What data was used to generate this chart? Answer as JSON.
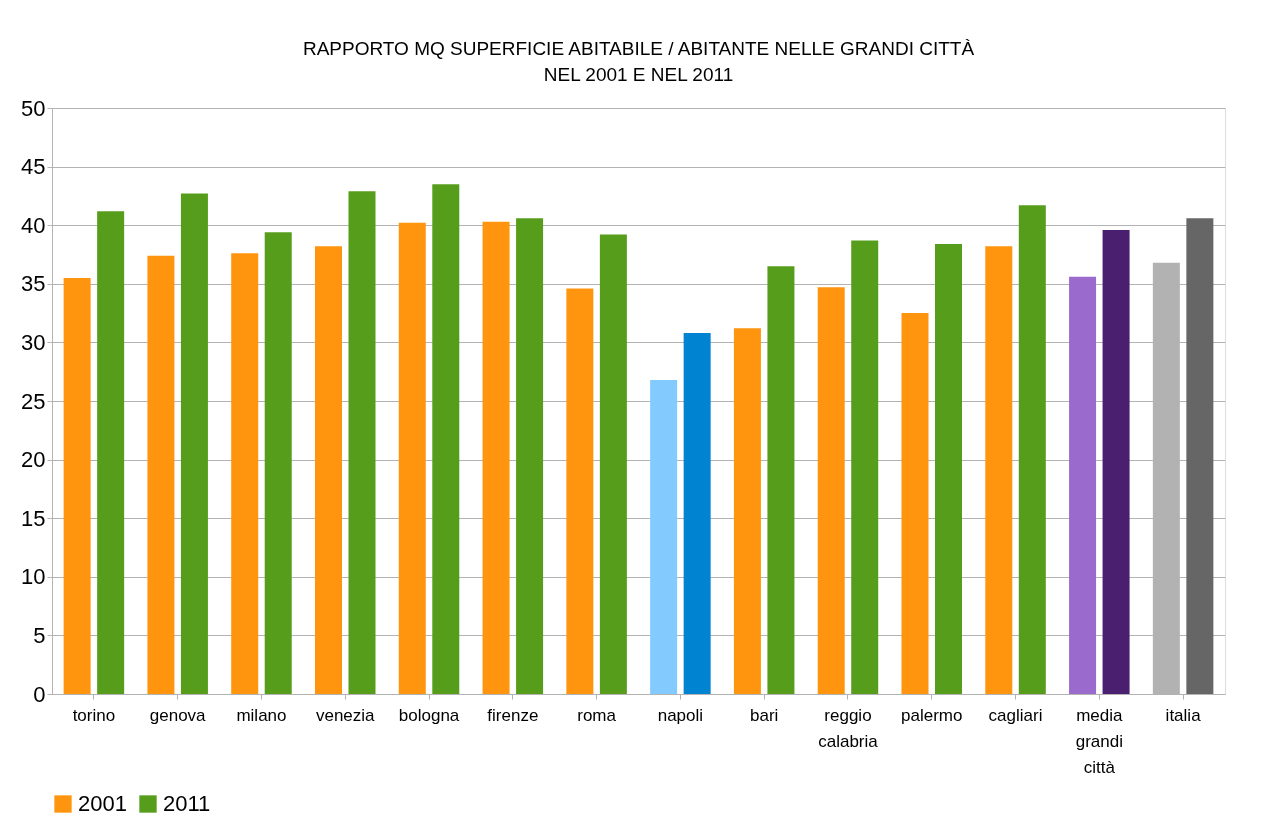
{
  "chart_data": {
    "type": "bar",
    "title": "RAPPORTO MQ SUPERFICIE ABITABILE / ABITANTE NELLE GRANDI CITTÀ\nNEL 2001 E NEL 2011",
    "categories": [
      "torino",
      "genova",
      "milano",
      "venezia",
      "bologna",
      "firenze",
      "roma",
      "napoli",
      "bari",
      "reggio calabria",
      "palermo",
      "cagliari",
      "media grandi città",
      "italia"
    ],
    "series": [
      {
        "name": "2001",
        "color": "#ff950e",
        "colors": [
          "#ff950e",
          "#ff950e",
          "#ff950e",
          "#ff950e",
          "#ff950e",
          "#ff950e",
          "#ff950e",
          "#83caff",
          "#ff950e",
          "#ff950e",
          "#ff950e",
          "#ff950e",
          "#9a6acd",
          "#b2b2b2"
        ],
        "values": [
          35.5,
          37.4,
          37.6,
          38.2,
          40.2,
          40.3,
          34.6,
          26.8,
          31.2,
          34.7,
          32.5,
          38.2,
          35.6,
          36.8
        ]
      },
      {
        "name": "2011",
        "color": "#579d1c",
        "colors": [
          "#579d1c",
          "#579d1c",
          "#579d1c",
          "#579d1c",
          "#579d1c",
          "#579d1c",
          "#579d1c",
          "#0084d1",
          "#579d1c",
          "#579d1c",
          "#579d1c",
          "#579d1c",
          "#4b1f6f",
          "#666666"
        ],
        "values": [
          41.2,
          42.7,
          39.4,
          42.9,
          43.5,
          40.6,
          39.2,
          30.8,
          36.5,
          38.7,
          38.4,
          41.7,
          39.6,
          40.6
        ]
      }
    ],
    "ylim": [
      0,
      50
    ],
    "yticks": [
      0,
      5,
      10,
      15,
      20,
      25,
      30,
      35,
      40,
      45,
      50
    ],
    "grid": "y",
    "legend": "bottom"
  }
}
